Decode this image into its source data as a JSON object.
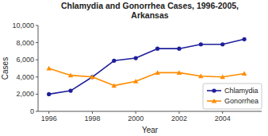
{
  "chart_data": {
    "type": "line",
    "title": "Chlamydia and Gonorrhea Cases, 1996-2005,\nArkansas",
    "xlabel": "Year",
    "ylabel": "Cases",
    "x": [
      1996,
      1997,
      1998,
      1999,
      2000,
      2001,
      2002,
      2003,
      2004,
      2005
    ],
    "series": [
      {
        "name": "Chlamydia",
        "color": "#1F1F9B",
        "marker": "circle",
        "values": [
          2000,
          2400,
          4000,
          5900,
          6200,
          7300,
          7300,
          7800,
          7800,
          8400
        ]
      },
      {
        "name": "Gonorrhea",
        "color": "#FF8C00",
        "marker": "triangle",
        "values": [
          5000,
          4200,
          4000,
          3000,
          3500,
          4500,
          4500,
          4100,
          4000,
          4400
        ]
      }
    ],
    "xlim": [
      1995.5,
      2005.8
    ],
    "xticks": [
      1996,
      1998,
      2000,
      2002,
      2004
    ],
    "ylim": [
      0,
      10000
    ],
    "yticks": [
      0,
      {
        "value": 2000,
        "label": "2,000"
      },
      {
        "value": 4000,
        "label": "4,000"
      },
      {
        "value": 6000,
        "label": "6,000"
      },
      {
        "value": 8000,
        "label": "8,000"
      },
      {
        "value": 10000,
        "label": "10,000"
      }
    ],
    "legend": "lower right"
  }
}
